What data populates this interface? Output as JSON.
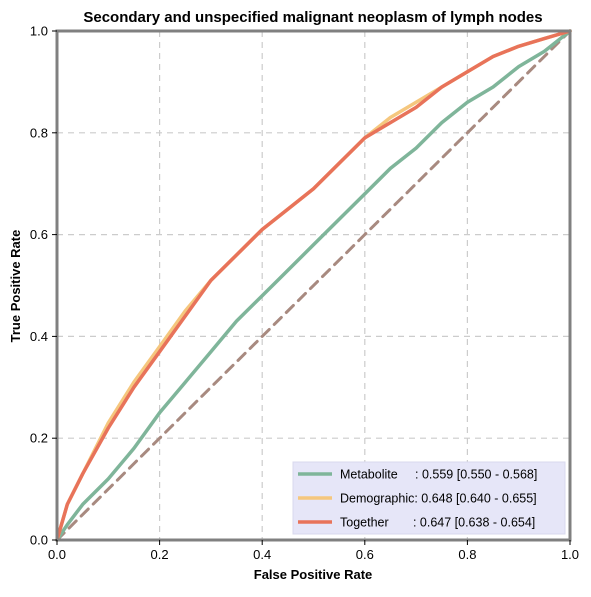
{
  "chart_data": {
    "type": "line",
    "title": "Secondary and unspecified malignant neoplasm of lymph nodes",
    "xlabel": "False Positive Rate",
    "ylabel": "True Positive Rate",
    "xlim": [
      0,
      1
    ],
    "ylim": [
      0,
      1
    ],
    "xticks": [
      "0.0",
      "0.2",
      "0.4",
      "0.6",
      "0.8",
      "1.0"
    ],
    "yticks": [
      "0.0",
      "0.2",
      "0.4",
      "0.6",
      "0.8",
      "1.0"
    ],
    "grid": true,
    "legend_position": "lower-right",
    "series": [
      {
        "name": "Metabolite",
        "legend_label": "Metabolite     : 0.559 [0.550 - 0.568]",
        "color": "#7fb59a",
        "x": [
          0,
          0.02,
          0.05,
          0.1,
          0.15,
          0.2,
          0.25,
          0.3,
          0.35,
          0.4,
          0.45,
          0.5,
          0.55,
          0.6,
          0.65,
          0.7,
          0.75,
          0.8,
          0.85,
          0.9,
          0.95,
          1.0
        ],
        "y": [
          0,
          0.03,
          0.07,
          0.12,
          0.18,
          0.25,
          0.31,
          0.37,
          0.43,
          0.48,
          0.53,
          0.58,
          0.63,
          0.68,
          0.73,
          0.77,
          0.82,
          0.86,
          0.89,
          0.93,
          0.96,
          1.0
        ]
      },
      {
        "name": "Demographic",
        "legend_label": "Demographic: 0.648 [0.640 - 0.655]",
        "color": "#f5c77e",
        "x": [
          0,
          0.02,
          0.05,
          0.1,
          0.15,
          0.2,
          0.25,
          0.3,
          0.35,
          0.4,
          0.45,
          0.5,
          0.55,
          0.6,
          0.65,
          0.7,
          0.75,
          0.8,
          0.85,
          0.9,
          0.95,
          1.0
        ],
        "y": [
          0,
          0.07,
          0.13,
          0.23,
          0.31,
          0.38,
          0.45,
          0.51,
          0.56,
          0.61,
          0.65,
          0.69,
          0.74,
          0.79,
          0.83,
          0.86,
          0.89,
          0.92,
          0.95,
          0.97,
          0.985,
          1.0
        ]
      },
      {
        "name": "Together",
        "legend_label": "Together       : 0.647 [0.638 - 0.654]",
        "color": "#e8735a",
        "x": [
          0,
          0.02,
          0.05,
          0.1,
          0.15,
          0.2,
          0.25,
          0.3,
          0.35,
          0.4,
          0.45,
          0.5,
          0.55,
          0.6,
          0.65,
          0.7,
          0.75,
          0.8,
          0.85,
          0.9,
          0.95,
          1.0
        ],
        "y": [
          0,
          0.07,
          0.13,
          0.22,
          0.3,
          0.37,
          0.44,
          0.51,
          0.56,
          0.61,
          0.65,
          0.69,
          0.74,
          0.79,
          0.82,
          0.85,
          0.89,
          0.92,
          0.95,
          0.97,
          0.985,
          1.0
        ]
      },
      {
        "name": "",
        "color": "#a88a80",
        "dashed": true,
        "x": [
          0,
          1
        ],
        "y": [
          0,
          1
        ]
      }
    ]
  }
}
